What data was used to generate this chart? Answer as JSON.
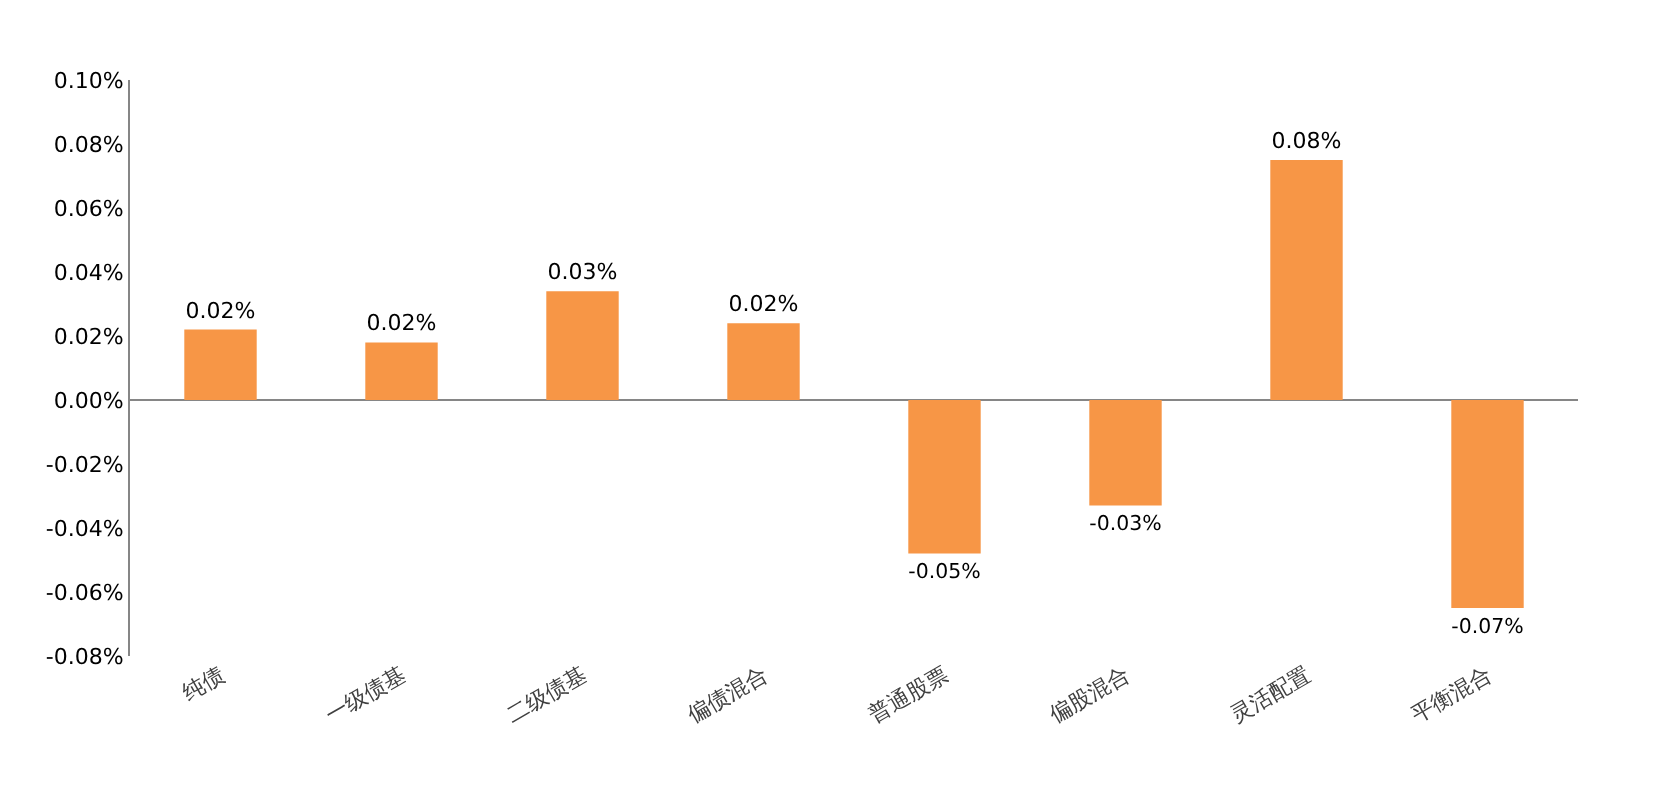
{
  "chart_data": {
    "type": "bar",
    "categories": [
      "纯债",
      "一级债基",
      "二级债基",
      "偏债混合",
      "普通股票",
      "偏股混合",
      "灵活配置",
      "平衡混合"
    ],
    "values": [
      0.022,
      0.018,
      0.034,
      0.024,
      -0.048,
      -0.033,
      0.075,
      -0.065
    ],
    "color": "#f79646",
    "value_labels": [
      "0.02%",
      "0.02%",
      "0.03%",
      "0.02%",
      "-0.05%",
      "-0.03%",
      "0.08%",
      "-0.07%"
    ],
    "ylim": [
      -0.08,
      0.1
    ],
    "yticks": [
      {
        "value": -0.08,
        "label": "-0.08%"
      },
      {
        "value": -0.06,
        "label": "-0.06%"
      },
      {
        "value": -0.04,
        "label": "-0.04%"
      },
      {
        "value": -0.02,
        "label": "-0.02%"
      },
      {
        "value": 0,
        "label": "0.00%"
      },
      {
        "value": 0.02,
        "label": "0.02%"
      },
      {
        "value": 0.04,
        "label": "0.04%"
      },
      {
        "value": 0.06,
        "label": "0.06%"
      },
      {
        "value": 0.08,
        "label": "0.08%"
      },
      {
        "value": 0.1,
        "label": "0.10%"
      }
    ]
  }
}
